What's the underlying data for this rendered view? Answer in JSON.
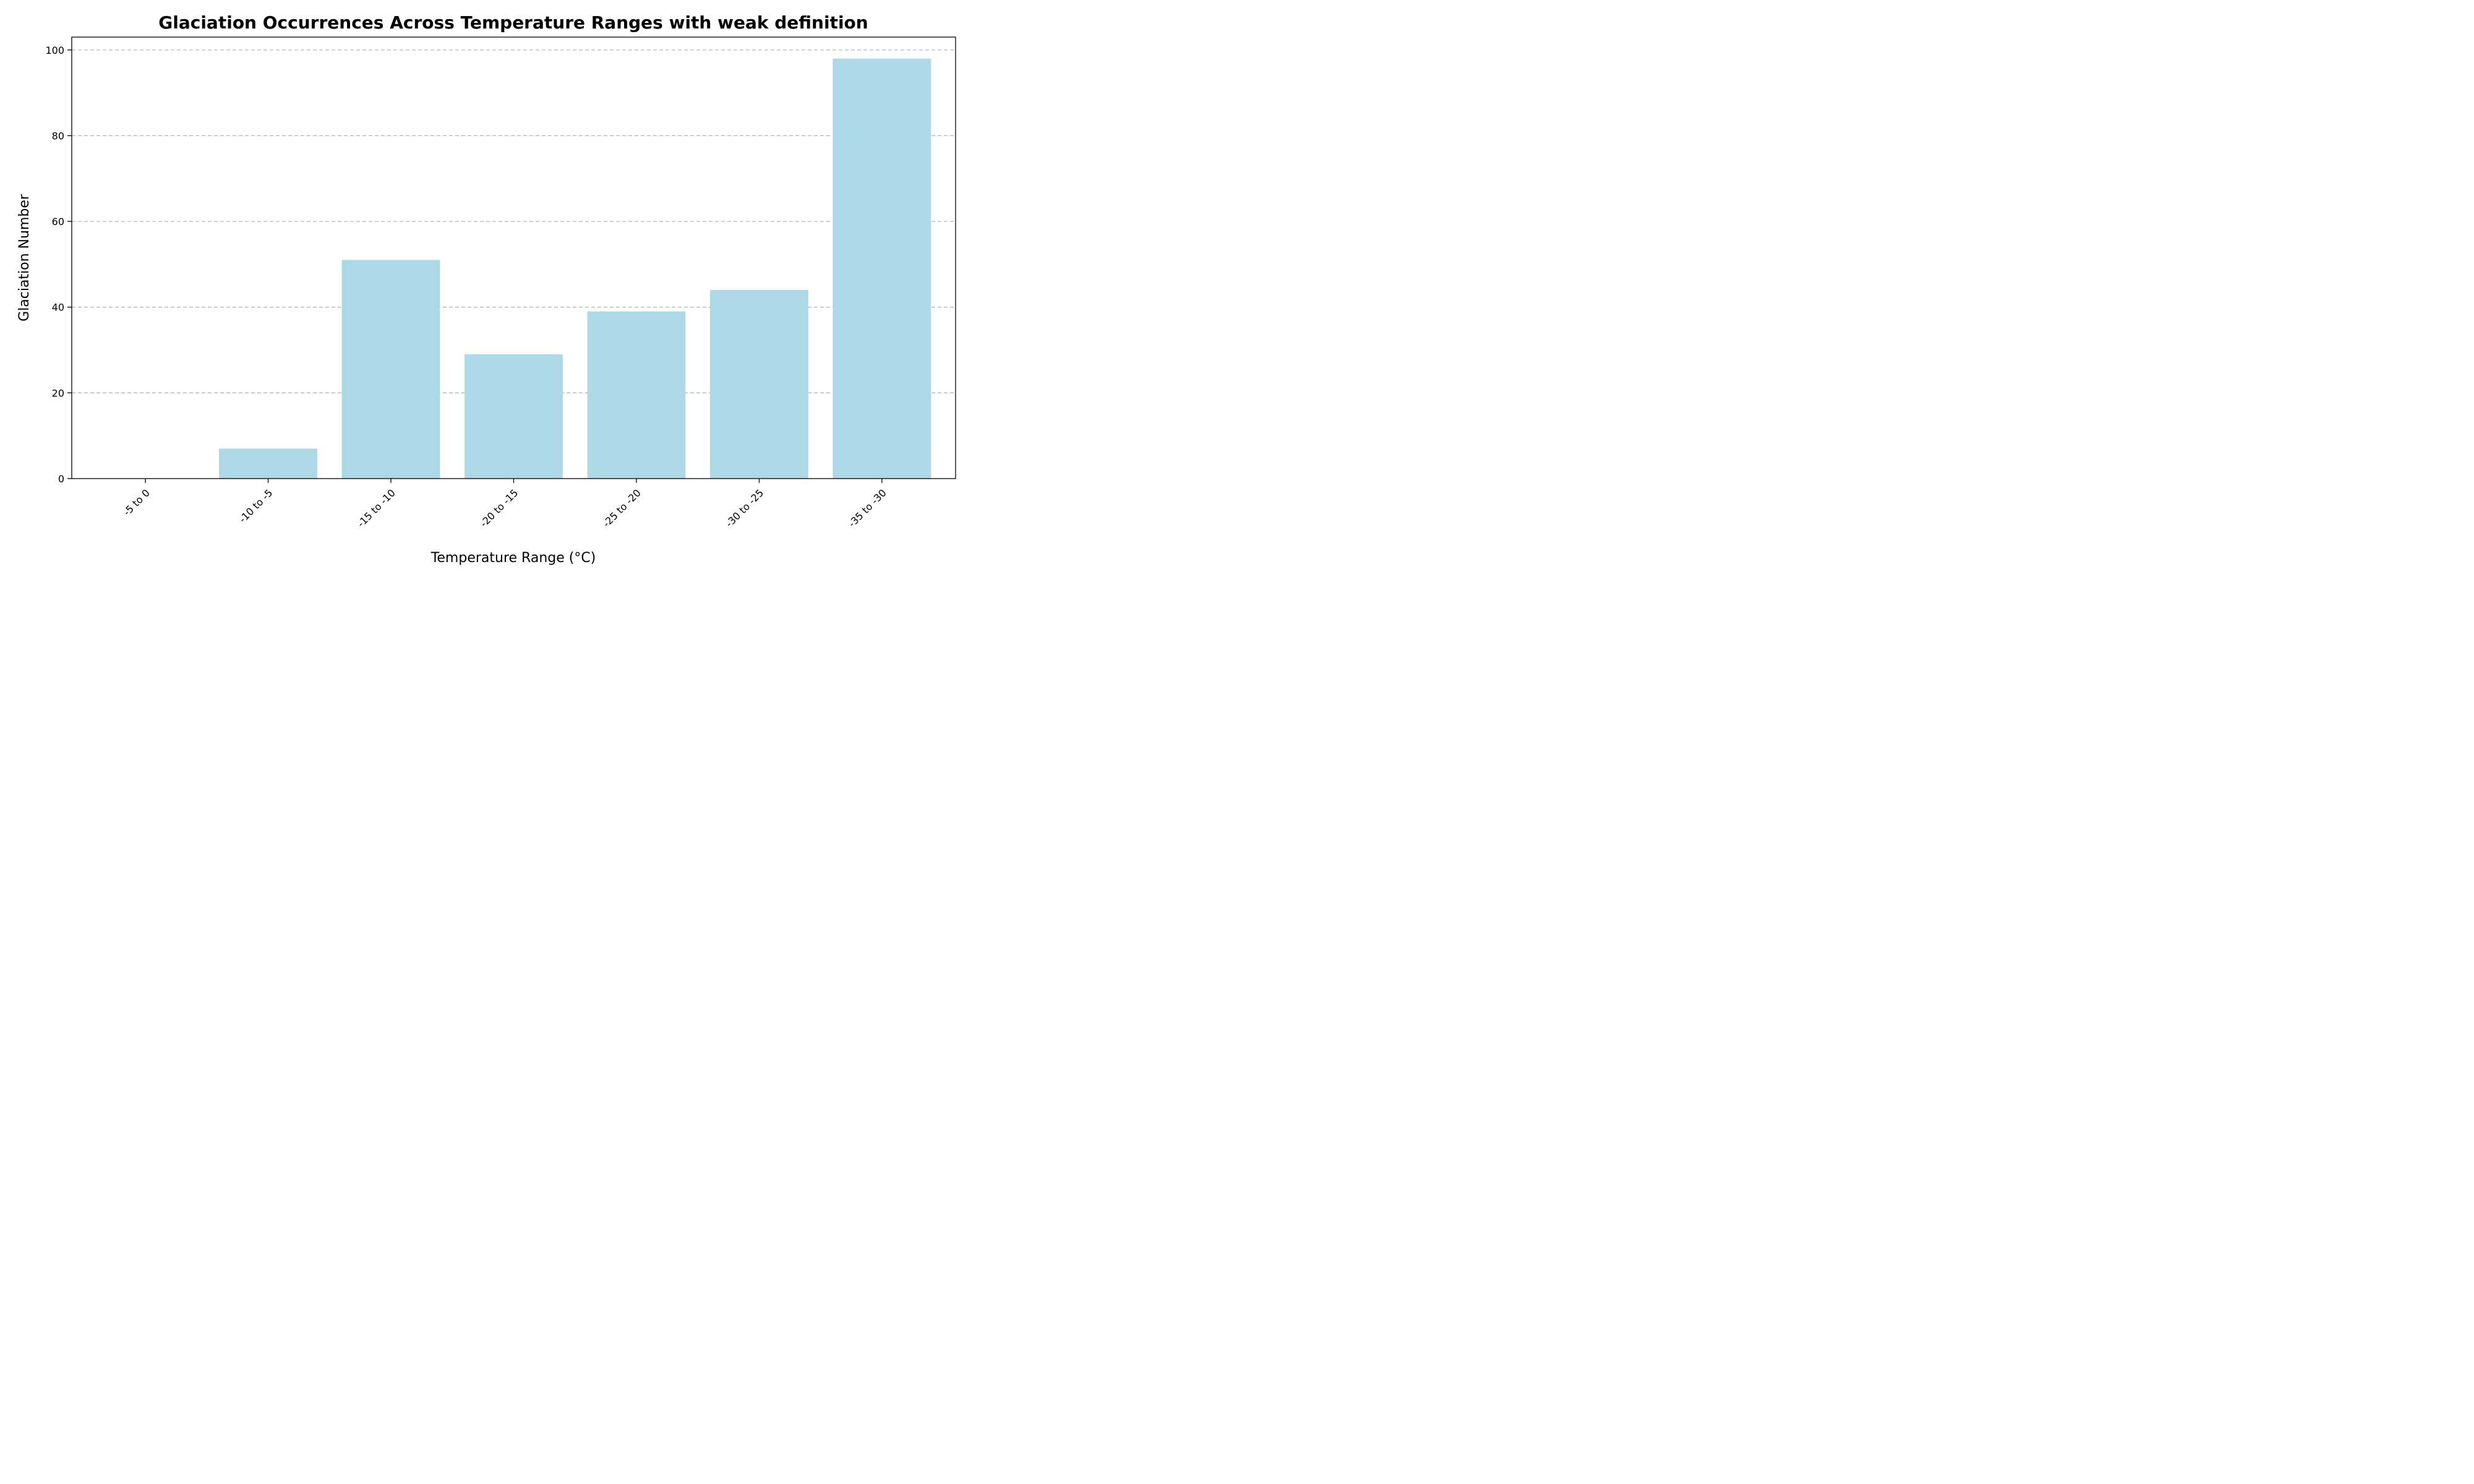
{
  "chart_data": {
    "type": "bar",
    "title": "Glaciation Occurrences Across Temperature Ranges with weak definition",
    "xlabel": "Temperature Range (°C)",
    "ylabel": "Glaciation Number",
    "categories": [
      "-5 to 0",
      "-10 to -5",
      "-15 to -10",
      "-20 to -15",
      "-25 to -20",
      "-30 to -25",
      "-35 to -30"
    ],
    "values": [
      0,
      7,
      51,
      29,
      39,
      44,
      98
    ],
    "ylim": [
      0,
      103
    ],
    "yticks": [
      0,
      20,
      40,
      60,
      80,
      100
    ],
    "grid": "y-dashed",
    "bar_color": "#add8e6",
    "legend": "none"
  }
}
